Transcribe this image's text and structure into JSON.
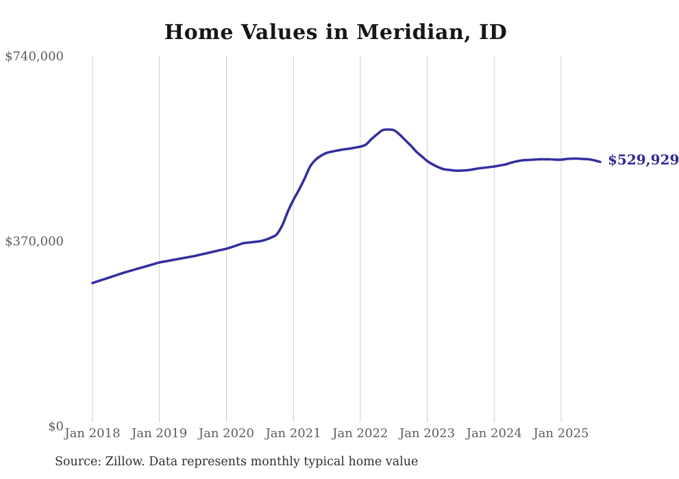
{
  "chart": {
    "title": "Home Values in Meridian, ID",
    "source_note": "Source: Zillow. Data represents monthly typical home value",
    "end_value_label": "$529,929"
  },
  "colors": {
    "background": "#ffffff",
    "line": "#332f9e",
    "end_label": "#2e2a96",
    "gridline": "#cccccc",
    "axis_text": "#5c5c5c",
    "title_text": "#161616",
    "source_text": "#2f2f2f"
  },
  "chart_data": {
    "type": "line",
    "title": "Home Values in Meridian, ID",
    "xlabel": "",
    "ylabel": "",
    "ylim": [
      0,
      740000
    ],
    "grid": "vertical-only",
    "legend_position": "none",
    "y_ticks": [
      {
        "value": 0,
        "label": "$0"
      },
      {
        "value": 370000,
        "label": "$370,000"
      },
      {
        "value": 740000,
        "label": "$740,000"
      }
    ],
    "x_ticks": [
      {
        "month_index": 0,
        "label": "Jan 2018"
      },
      {
        "month_index": 12,
        "label": "Jan 2019"
      },
      {
        "month_index": 24,
        "label": "Jan 2020"
      },
      {
        "month_index": 36,
        "label": "Jan 2021"
      },
      {
        "month_index": 48,
        "label": "Jan 2022"
      },
      {
        "month_index": 60,
        "label": "Jan 2023"
      },
      {
        "month_index": 72,
        "label": "Jan 2024"
      },
      {
        "month_index": 84,
        "label": "Jan 2025"
      }
    ],
    "annotation": {
      "text": "$529,929",
      "attached_to": "last-point"
    },
    "series": [
      {
        "name": "Monthly typical home value",
        "unit": "USD",
        "point_format": [
          "date",
          "value_usd"
        ],
        "points": [
          [
            "2018-01",
            287800
          ],
          [
            "2018-02",
            291500
          ],
          [
            "2018-03",
            295100
          ],
          [
            "2018-04",
            298800
          ],
          [
            "2018-05",
            302400
          ],
          [
            "2018-06",
            306100
          ],
          [
            "2018-07",
            309700
          ],
          [
            "2018-08",
            312900
          ],
          [
            "2018-09",
            316100
          ],
          [
            "2018-10",
            319300
          ],
          [
            "2018-11",
            322500
          ],
          [
            "2018-12",
            325700
          ],
          [
            "2019-01",
            328900
          ],
          [
            "2019-02",
            331000
          ],
          [
            "2019-03",
            333000
          ],
          [
            "2019-04",
            335100
          ],
          [
            "2019-05",
            337100
          ],
          [
            "2019-06",
            339200
          ],
          [
            "2019-07",
            341200
          ],
          [
            "2019-08",
            343700
          ],
          [
            "2019-09",
            346200
          ],
          [
            "2019-10",
            348700
          ],
          [
            "2019-11",
            351300
          ],
          [
            "2019-12",
            353800
          ],
          [
            "2020-01",
            356300
          ],
          [
            "2020-02",
            359900
          ],
          [
            "2020-03",
            363600
          ],
          [
            "2020-04",
            367200
          ],
          [
            "2020-05",
            368600
          ],
          [
            "2020-06",
            370000
          ],
          [
            "2020-07",
            371400
          ],
          [
            "2020-08",
            374200
          ],
          [
            "2020-09",
            378600
          ],
          [
            "2020-10",
            385000
          ],
          [
            "2020-11",
            402900
          ],
          [
            "2020-12",
            430300
          ],
          [
            "2021-01",
            453600
          ],
          [
            "2021-02",
            474100
          ],
          [
            "2021-03",
            496100
          ],
          [
            "2021-04",
            520700
          ],
          [
            "2021-05",
            534400
          ],
          [
            "2021-06",
            542700
          ],
          [
            "2021-07",
            548100
          ],
          [
            "2021-08",
            550800
          ],
          [
            "2021-09",
            552900
          ],
          [
            "2021-10",
            555000
          ],
          [
            "2021-11",
            556400
          ],
          [
            "2021-12",
            558400
          ],
          [
            "2022-01",
            560500
          ],
          [
            "2022-02",
            564600
          ],
          [
            "2022-03",
            575600
          ],
          [
            "2022-04",
            585200
          ],
          [
            "2022-05",
            593400
          ],
          [
            "2022-06",
            594700
          ],
          [
            "2022-07",
            593400
          ],
          [
            "2022-08",
            585200
          ],
          [
            "2022-09",
            574200
          ],
          [
            "2022-10",
            563200
          ],
          [
            "2022-11",
            550900
          ],
          [
            "2022-12",
            541300
          ],
          [
            "2023-01",
            531700
          ],
          [
            "2023-02",
            524800
          ],
          [
            "2023-03",
            519400
          ],
          [
            "2023-04",
            515300
          ],
          [
            "2023-05",
            513900
          ],
          [
            "2023-06",
            512500
          ],
          [
            "2023-07",
            512500
          ],
          [
            "2023-08",
            513200
          ],
          [
            "2023-09",
            514600
          ],
          [
            "2023-10",
            516600
          ],
          [
            "2023-11",
            518000
          ],
          [
            "2023-12",
            519400
          ],
          [
            "2024-01",
            520700
          ],
          [
            "2024-02",
            522800
          ],
          [
            "2024-03",
            524800
          ],
          [
            "2024-04",
            528300
          ],
          [
            "2024-05",
            531000
          ],
          [
            "2024-06",
            533100
          ],
          [
            "2024-07",
            533800
          ],
          [
            "2024-08",
            534400
          ],
          [
            "2024-09",
            535100
          ],
          [
            "2024-10",
            535100
          ],
          [
            "2024-11",
            535100
          ],
          [
            "2024-12",
            534400
          ],
          [
            "2025-01",
            534400
          ],
          [
            "2025-02",
            535800
          ],
          [
            "2025-03",
            536500
          ],
          [
            "2025-04",
            536500
          ],
          [
            "2025-05",
            535800
          ],
          [
            "2025-06",
            535100
          ],
          [
            "2025-07",
            532900
          ],
          [
            "2025-08",
            529929
          ]
        ],
        "end_value": 529929
      }
    ]
  }
}
